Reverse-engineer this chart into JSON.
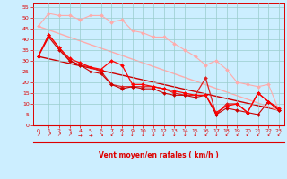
{
  "xlabel": "Vent moyen/en rafales ( km/h )",
  "bg_color": "#cceeff",
  "grid_color": "#99cccc",
  "xlim": [
    -0.5,
    23.5
  ],
  "ylim": [
    0,
    57
  ],
  "yticks": [
    0,
    5,
    10,
    15,
    20,
    25,
    30,
    35,
    40,
    45,
    50,
    55
  ],
  "xticks": [
    0,
    1,
    2,
    3,
    4,
    5,
    6,
    7,
    8,
    9,
    10,
    11,
    12,
    13,
    14,
    15,
    16,
    17,
    18,
    19,
    20,
    21,
    22,
    23
  ],
  "series": [
    {
      "x": [
        0,
        1,
        2,
        3,
        4,
        5,
        6,
        7,
        8,
        9,
        10,
        11,
        12,
        13,
        14,
        15,
        16,
        17,
        18,
        19,
        20,
        21,
        22,
        23
      ],
      "y": [
        46,
        52,
        51,
        51,
        49,
        51,
        51,
        48,
        49,
        44,
        43,
        41,
        41,
        38,
        35,
        32,
        28,
        30,
        26,
        20,
        19,
        18,
        19,
        7
      ],
      "color": "#ffaaaa",
      "lw": 0.8,
      "marker": "D",
      "ms": 2.0
    },
    {
      "x": [
        0,
        1,
        2,
        3,
        4,
        5,
        6,
        7,
        8,
        9,
        10,
        11,
        12,
        13,
        14,
        15,
        16,
        17,
        18,
        19,
        20,
        21,
        22,
        23
      ],
      "y": [
        32,
        42,
        36,
        30,
        28,
        27,
        25,
        19,
        18,
        18,
        18,
        18,
        17,
        15,
        14,
        14,
        22,
        5,
        10,
        10,
        6,
        15,
        11,
        7
      ],
      "color": "#dd2222",
      "lw": 0.9,
      "marker": "D",
      "ms": 2.0
    },
    {
      "x": [
        0,
        1,
        2,
        3,
        4,
        5,
        6,
        7,
        8,
        9,
        10,
        11,
        12,
        13,
        14,
        15,
        16,
        17,
        18,
        19,
        20,
        21,
        22,
        23
      ],
      "y": [
        32,
        41,
        35,
        30,
        28,
        25,
        24,
        19,
        17,
        18,
        17,
        17,
        15,
        14,
        14,
        13,
        14,
        5,
        8,
        7,
        6,
        5,
        11,
        7
      ],
      "color": "#cc0000",
      "lw": 0.8,
      "marker": "D",
      "ms": 2.0
    },
    {
      "x": [
        0,
        1,
        2,
        3,
        4,
        5,
        6,
        7,
        8,
        9,
        10,
        11,
        12,
        13,
        14,
        15,
        16,
        17,
        18,
        19,
        20,
        21,
        22,
        23
      ],
      "y": [
        32,
        42,
        36,
        31,
        29,
        27,
        26,
        30,
        28,
        19,
        19,
        18,
        17,
        16,
        15,
        14,
        14,
        6,
        9,
        10,
        6,
        15,
        11,
        8
      ],
      "color": "#ff0000",
      "lw": 0.9,
      "marker": "D",
      "ms": 2.0
    },
    {
      "x": [
        0,
        23
      ],
      "y": [
        32,
        7
      ],
      "color": "#cc0000",
      "lw": 1.0,
      "marker": null,
      "ms": 0
    },
    {
      "x": [
        0,
        23
      ],
      "y": [
        46,
        7
      ],
      "color": "#ffaaaa",
      "lw": 1.0,
      "marker": null,
      "ms": 0
    }
  ],
  "wind_arrows": {
    "x": [
      0,
      1,
      2,
      3,
      4,
      5,
      6,
      7,
      8,
      9,
      10,
      11,
      12,
      13,
      14,
      15,
      16,
      17,
      18,
      19,
      20,
      21,
      22,
      23
    ],
    "symbols": [
      "↗",
      "↗",
      "↗",
      "↗",
      "→",
      "→",
      "↘",
      "↙",
      "↓",
      "↓",
      "↓",
      "↓",
      "↓",
      "↓",
      "↓",
      "↓",
      "↙",
      "↓",
      "↙",
      "↙",
      "↙",
      "↙",
      "↙",
      "↙"
    ],
    "color": "#dd0000"
  }
}
